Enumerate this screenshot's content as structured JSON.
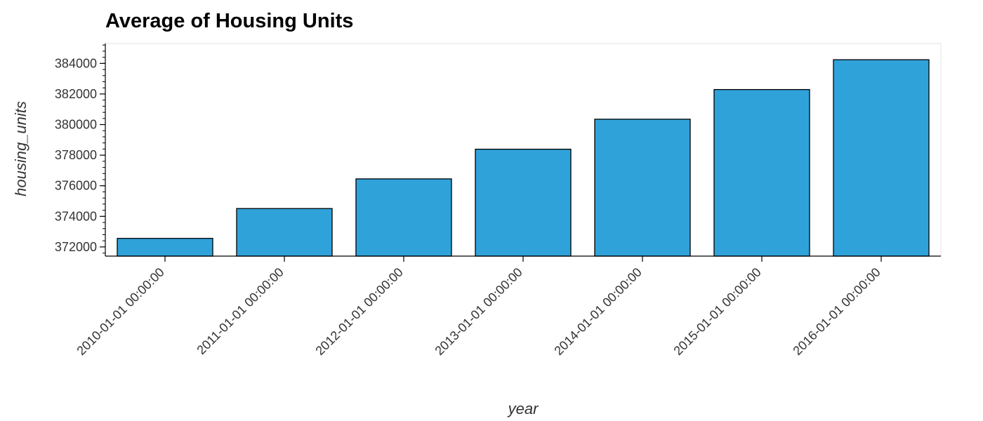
{
  "chart_data": {
    "type": "bar",
    "title": "Average of Housing Units",
    "xlabel": "year",
    "ylabel": "housing_units",
    "categories": [
      "2010-01-01 00:00:00",
      "2011-01-01 00:00:00",
      "2012-01-01 00:00:00",
      "2013-01-01 00:00:00",
      "2014-01-01 00:00:00",
      "2015-01-01 00:00:00",
      "2016-01-01 00:00:00"
    ],
    "values": [
      372560,
      374510,
      376450,
      378390,
      380350,
      382290,
      384240
    ],
    "ylim": [
      371400,
      385300
    ],
    "yticks": [
      372000,
      374000,
      376000,
      378000,
      380000,
      382000,
      384000
    ],
    "grid": false,
    "bar_color": "#30a2da",
    "bar_edge_color": "#000000"
  }
}
